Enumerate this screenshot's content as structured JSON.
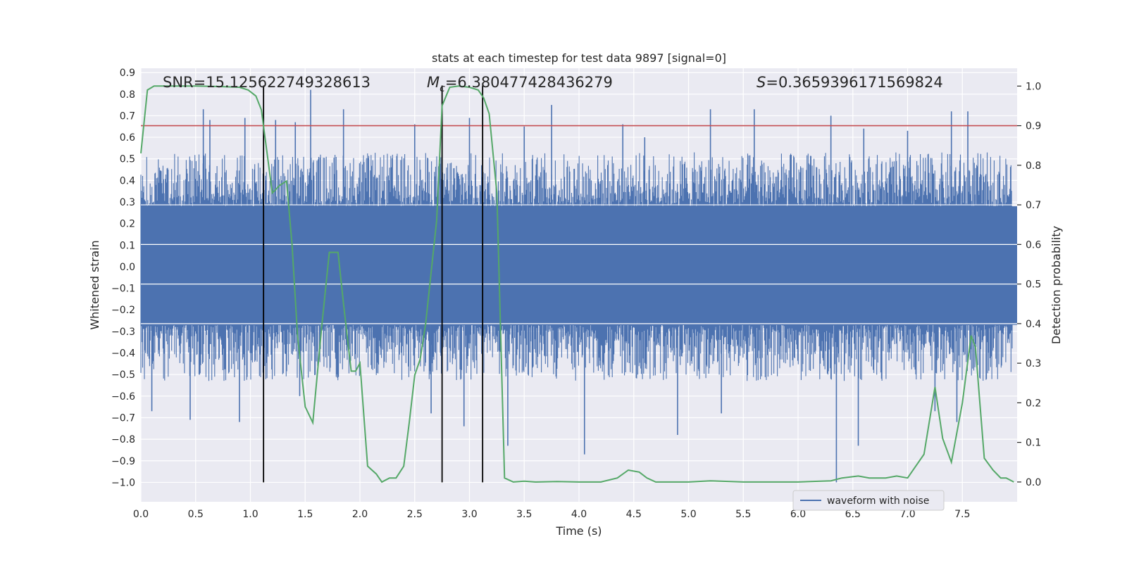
{
  "chart_data": {
    "type": "line",
    "title": "stats at each timestep for test data 9897 [signal=0]",
    "xlabel": "Time (s)",
    "ylabel": "Whitened strain",
    "ylabel_right": "Detection probability",
    "xlim": [
      0.0,
      8.0
    ],
    "ylim": [
      -1.09,
      0.92
    ],
    "ylim_right": [
      -0.05,
      1.045
    ],
    "x_ticks": [
      "0.0",
      "0.5",
      "1.0",
      "1.5",
      "2.0",
      "2.5",
      "3.0",
      "3.5",
      "4.0",
      "4.5",
      "5.0",
      "5.5",
      "6.0",
      "6.5",
      "7.0",
      "7.5"
    ],
    "y_ticks": [
      "0.9",
      "0.8",
      "0.7",
      "0.6",
      "0.5",
      "0.4",
      "0.3",
      "0.2",
      "0.1",
      "0.0",
      "-0.1",
      "-0.2",
      "-0.3",
      "-0.4",
      "-0.5",
      "-0.6",
      "-0.7",
      "-0.8",
      "-0.9",
      "-1.0"
    ],
    "y_ticks_right": [
      "1.0",
      "0.9",
      "0.8",
      "0.7",
      "0.6",
      "0.5",
      "0.4",
      "0.3",
      "0.2",
      "0.1",
      "0.0"
    ],
    "annotations": {
      "snr": "SNR=15.125622749328613",
      "mc_symbol": "M",
      "mc_sub": "c",
      "mc_value": "=6.380477428436279",
      "s_symbol": "S",
      "s_value": "=0.3659396171569824"
    },
    "series": [
      {
        "name": "waveform with noise",
        "axis": "left",
        "color": "#4c72b0",
        "envelope": {
          "core_band": [
            -0.27,
            0.28
          ],
          "typical_peak": 0.45,
          "typical_trough": -0.45,
          "peaks": [
            {
              "x": 0.57,
              "y": 0.73
            },
            {
              "x": 0.63,
              "y": 0.68
            },
            {
              "x": 0.95,
              "y": 0.69
            },
            {
              "x": 1.23,
              "y": 0.68
            },
            {
              "x": 1.41,
              "y": 0.67
            },
            {
              "x": 1.55,
              "y": 0.82
            },
            {
              "x": 1.85,
              "y": 0.73
            },
            {
              "x": 2.5,
              "y": 0.66
            },
            {
              "x": 3.0,
              "y": 0.69
            },
            {
              "x": 3.5,
              "y": 0.65
            },
            {
              "x": 3.75,
              "y": 0.75
            },
            {
              "x": 4.4,
              "y": 0.66
            },
            {
              "x": 4.6,
              "y": 0.6
            },
            {
              "x": 5.2,
              "y": 0.73
            },
            {
              "x": 5.6,
              "y": 0.73
            },
            {
              "x": 6.3,
              "y": 0.7
            },
            {
              "x": 6.6,
              "y": 0.64
            },
            {
              "x": 7.0,
              "y": 0.63
            },
            {
              "x": 7.4,
              "y": 0.72
            },
            {
              "x": 7.55,
              "y": 0.72
            }
          ],
          "troughs": [
            {
              "x": 0.1,
              "y": -0.67
            },
            {
              "x": 0.45,
              "y": -0.71
            },
            {
              "x": 0.9,
              "y": -0.72
            },
            {
              "x": 1.45,
              "y": -0.6
            },
            {
              "x": 2.65,
              "y": -0.68
            },
            {
              "x": 2.95,
              "y": -0.74
            },
            {
              "x": 3.35,
              "y": -0.83
            },
            {
              "x": 4.05,
              "y": -0.87
            },
            {
              "x": 4.9,
              "y": -0.78
            },
            {
              "x": 5.3,
              "y": -0.68
            },
            {
              "x": 6.35,
              "y": -1.0
            },
            {
              "x": 6.55,
              "y": -0.83
            },
            {
              "x": 7.25,
              "y": -0.67
            },
            {
              "x": 7.45,
              "y": -0.72
            }
          ]
        }
      },
      {
        "name": "detection probability",
        "axis": "right",
        "color": "#55a868",
        "x": [
          0.0,
          0.06,
          0.12,
          0.2,
          0.3,
          0.5,
          0.7,
          0.9,
          0.98,
          1.05,
          1.1,
          1.2,
          1.27,
          1.33,
          1.38,
          1.43,
          1.5,
          1.57,
          1.65,
          1.72,
          1.8,
          1.85,
          1.92,
          1.96,
          2.0,
          2.07,
          2.15,
          2.2,
          2.27,
          2.33,
          2.4,
          2.45,
          2.5,
          2.55,
          2.6,
          2.7,
          2.75,
          2.82,
          2.9,
          3.0,
          3.08,
          3.13,
          3.18,
          3.25,
          3.32,
          3.4,
          3.5,
          3.6,
          3.8,
          4.0,
          4.2,
          4.35,
          4.45,
          4.55,
          4.62,
          4.7,
          5.0,
          5.2,
          5.5,
          5.6,
          6.0,
          6.3,
          6.4,
          6.55,
          6.65,
          6.8,
          6.9,
          7.0,
          7.15,
          7.25,
          7.32,
          7.4,
          7.5,
          7.58,
          7.62,
          7.66,
          7.7,
          7.78,
          7.85,
          7.9,
          7.97
        ],
        "y": [
          0.83,
          0.99,
          1.0,
          1.0,
          1.0,
          1.0,
          0.999,
          0.997,
          0.99,
          0.975,
          0.94,
          0.73,
          0.75,
          0.76,
          0.6,
          0.37,
          0.19,
          0.15,
          0.39,
          0.58,
          0.58,
          0.45,
          0.28,
          0.28,
          0.3,
          0.04,
          0.02,
          0.0,
          0.01,
          0.01,
          0.04,
          0.15,
          0.27,
          0.31,
          0.4,
          0.66,
          0.95,
          0.997,
          1.0,
          0.997,
          0.99,
          0.97,
          0.93,
          0.73,
          0.01,
          0.0,
          0.002,
          0.0,
          0.001,
          0.0,
          0.0,
          0.01,
          0.03,
          0.025,
          0.01,
          0.0,
          0.0,
          0.003,
          0.0,
          0.0,
          0.0,
          0.003,
          0.01,
          0.015,
          0.01,
          0.01,
          0.015,
          0.01,
          0.07,
          0.24,
          0.11,
          0.05,
          0.2,
          0.37,
          0.34,
          0.2,
          0.06,
          0.03,
          0.01,
          0.01,
          0.0
        ]
      }
    ],
    "hlines": [
      {
        "axis": "right",
        "y": 0.9,
        "color": "#c44e52"
      }
    ],
    "vlines": [
      {
        "x": 1.12
      },
      {
        "x": 2.75
      },
      {
        "x": 3.12
      }
    ],
    "vline_color": "#000000",
    "grid": true,
    "legend": {
      "placement": "lower-right",
      "entries": [
        "waveform with noise"
      ]
    }
  }
}
